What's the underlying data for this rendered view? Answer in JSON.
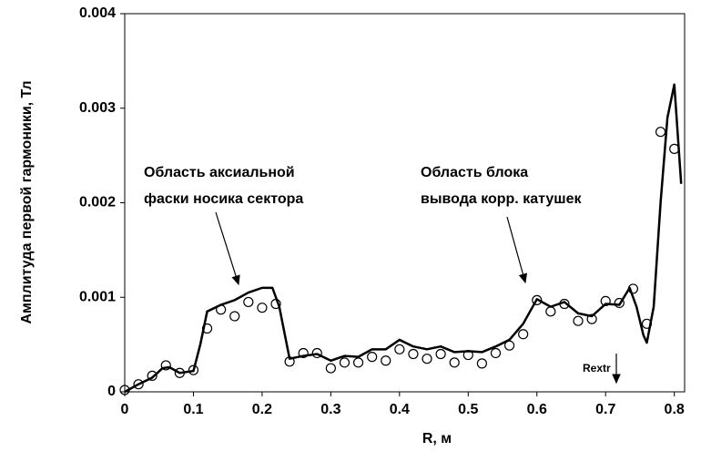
{
  "chart_data": {
    "type": "line",
    "xlabel": "R, м",
    "ylabel": "Амплитуда первой гармоники, Тл",
    "xlim": [
      0,
      0.815
    ],
    "ylim": [
      0,
      0.004
    ],
    "xticks": [
      0,
      0.1,
      0.2,
      0.3,
      0.4,
      0.5,
      0.6,
      0.7,
      0.8
    ],
    "yticks": [
      0,
      0.001,
      0.002,
      0.003,
      0.004
    ],
    "grid": false,
    "annotations": [
      {
        "lines": [
          "Область аксиальной",
          "фаски носика сектора"
        ]
      },
      {
        "lines": [
          "Область блока",
          "вывода корр. катушек"
        ]
      },
      {
        "lines": [
          "Rextr"
        ]
      }
    ],
    "series": [
      {
        "type": "line",
        "color": "#000000",
        "x": [
          0,
          0.02,
          0.04,
          0.055,
          0.065,
          0.08,
          0.1,
          0.11,
          0.12,
          0.14,
          0.16,
          0.18,
          0.2,
          0.215,
          0.225,
          0.24,
          0.26,
          0.28,
          0.3,
          0.32,
          0.34,
          0.36,
          0.38,
          0.4,
          0.42,
          0.44,
          0.46,
          0.48,
          0.5,
          0.52,
          0.54,
          0.56,
          0.58,
          0.6,
          0.62,
          0.64,
          0.66,
          0.68,
          0.7,
          0.72,
          0.735,
          0.745,
          0.755,
          0.76,
          0.77,
          0.78,
          0.79,
          0.8,
          0.81
        ],
        "values": [
          0,
          8e-05,
          0.00015,
          0.00025,
          0.00026,
          0.0002,
          0.00022,
          0.0005,
          0.00085,
          0.00092,
          0.00097,
          0.00105,
          0.0011,
          0.0011,
          0.0009,
          0.00035,
          0.00038,
          0.0004,
          0.00033,
          0.00038,
          0.00037,
          0.00045,
          0.00045,
          0.00055,
          0.00048,
          0.00045,
          0.00048,
          0.00042,
          0.00043,
          0.00042,
          0.00048,
          0.00055,
          0.00072,
          0.00098,
          0.0009,
          0.00095,
          0.00083,
          0.0008,
          0.00093,
          0.00092,
          0.0011,
          0.0009,
          0.0006,
          0.00052,
          0.0009,
          0.002,
          0.0029,
          0.00325,
          0.0022
        ]
      },
      {
        "type": "scatter",
        "color": "#000000",
        "x": [
          0,
          0.02,
          0.04,
          0.06,
          0.08,
          0.1,
          0.12,
          0.14,
          0.16,
          0.18,
          0.2,
          0.22,
          0.24,
          0.26,
          0.28,
          0.3,
          0.32,
          0.34,
          0.36,
          0.38,
          0.4,
          0.42,
          0.44,
          0.46,
          0.48,
          0.5,
          0.52,
          0.54,
          0.56,
          0.58,
          0.6,
          0.62,
          0.64,
          0.66,
          0.68,
          0.7,
          0.72,
          0.74,
          0.76,
          0.78,
          0.8
        ],
        "values": [
          2e-05,
          8e-05,
          0.00017,
          0.00028,
          0.0002,
          0.00023,
          0.00067,
          0.00087,
          0.0008,
          0.00095,
          0.00089,
          0.00093,
          0.00032,
          0.00041,
          0.00041,
          0.00025,
          0.00031,
          0.00031,
          0.00037,
          0.00033,
          0.00045,
          0.0004,
          0.00035,
          0.0004,
          0.00031,
          0.00039,
          0.0003,
          0.00041,
          0.00049,
          0.00061,
          0.00097,
          0.00085,
          0.00093,
          0.00075,
          0.00077,
          0.00096,
          0.00094,
          0.00109,
          0.00072,
          0.00275,
          0.00257
        ]
      }
    ]
  }
}
